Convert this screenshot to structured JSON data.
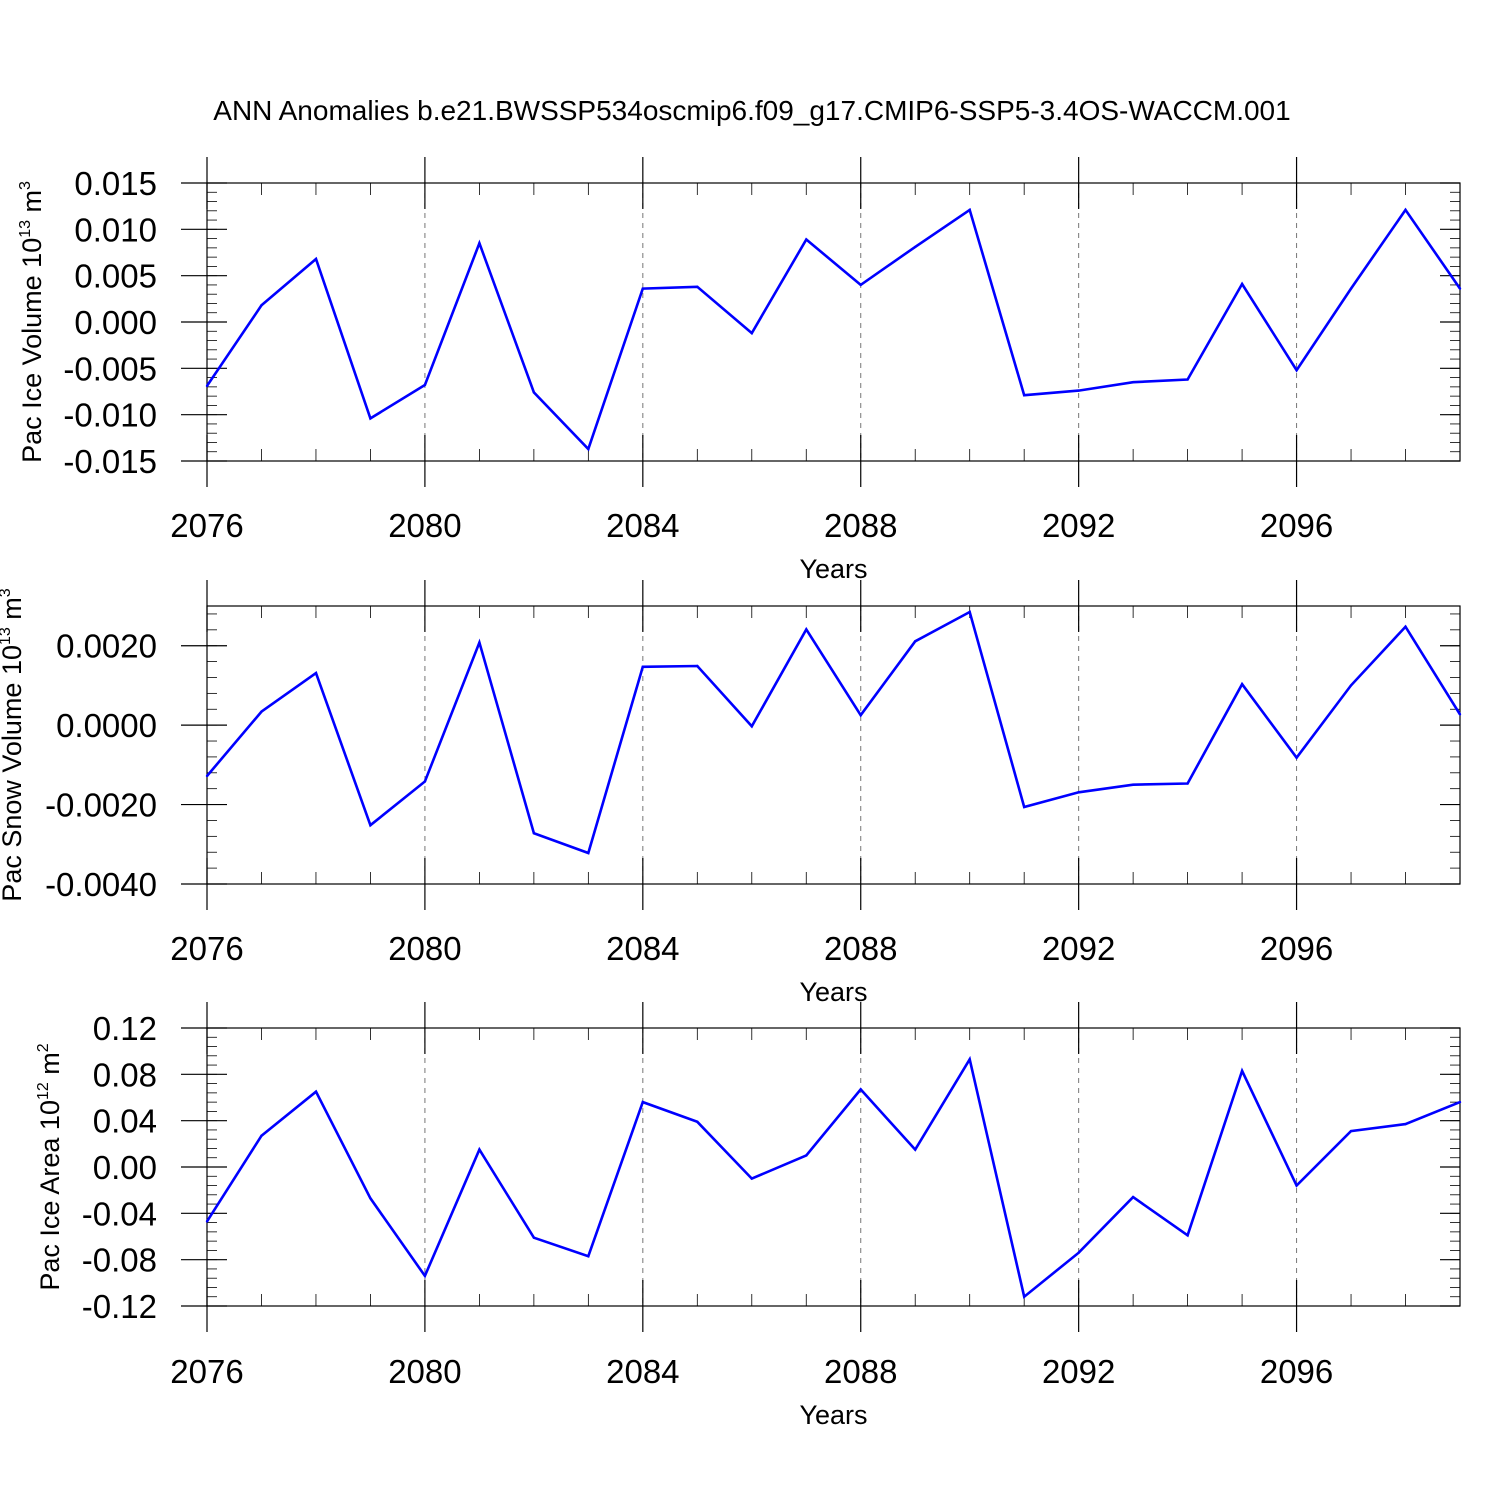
{
  "title": "ANN Anomalies b.e21.BWSSP534oscmip6.f09_g17.CMIP6-SSP5-3.4OS-WACCM.001",
  "line_color": "#0000ff",
  "chart_data": [
    {
      "type": "line",
      "ylabel": "Pac Ice Volume 10",
      "ylabel_exp": "13",
      "ylabel_unit": " m",
      "ylabel_unit_exp": "3",
      "xlabel": "Years",
      "xlim": [
        2076,
        2099
      ],
      "ylim": [
        -0.015,
        0.015
      ],
      "yticks": [
        -0.015,
        -0.01,
        -0.005,
        0.0,
        0.005,
        0.01,
        0.015
      ],
      "ytick_labels": [
        "-0.015",
        "-0.010",
        "-0.005",
        "0.000",
        "0.005",
        "0.010",
        "0.015"
      ],
      "xticks": [
        2076,
        2080,
        2084,
        2088,
        2092,
        2096
      ],
      "xtick_labels": [
        "2076",
        "2080",
        "2084",
        "2088",
        "2092",
        "2096"
      ],
      "x": [
        2076,
        2077,
        2078,
        2079,
        2080,
        2081,
        2082,
        2083,
        2084,
        2085,
        2086,
        2087,
        2088,
        2089,
        2090,
        2091,
        2092,
        2093,
        2094,
        2095,
        2096,
        2097,
        2098,
        2099
      ],
      "values": [
        -0.0069,
        0.0018,
        0.0068,
        -0.0104,
        -0.0068,
        0.0085,
        -0.0076,
        -0.0137,
        0.0036,
        0.0038,
        -0.0012,
        0.0089,
        0.004,
        0.0081,
        0.0121,
        -0.0079,
        -0.0074,
        -0.0065,
        -0.0062,
        0.0041,
        -0.0052,
        0.0036,
        0.0121,
        0.0036
      ]
    },
    {
      "type": "line",
      "ylabel": "Pac Snow Volume 10",
      "ylabel_exp": "13",
      "ylabel_unit": " m",
      "ylabel_unit_exp": "3",
      "xlabel": "Years",
      "xlim": [
        2076,
        2099
      ],
      "ylim": [
        -0.004,
        0.003
      ],
      "yticks": [
        -0.004,
        -0.002,
        0.0,
        0.002
      ],
      "ytick_labels": [
        "-0.0040",
        "-0.0020",
        "0.0000",
        "0.0020"
      ],
      "xticks": [
        2076,
        2080,
        2084,
        2088,
        2092,
        2096
      ],
      "xtick_labels": [
        "2076",
        "2080",
        "2084",
        "2088",
        "2092",
        "2096"
      ],
      "x": [
        2076,
        2077,
        2078,
        2079,
        2080,
        2081,
        2082,
        2083,
        2084,
        2085,
        2086,
        2087,
        2088,
        2089,
        2090,
        2091,
        2092,
        2093,
        2094,
        2095,
        2096,
        2097,
        2098,
        2099
      ],
      "values": [
        -0.00128,
        0.00034,
        0.00131,
        -0.00252,
        -0.00142,
        0.00208,
        -0.00272,
        -0.00322,
        0.00147,
        0.00149,
        -3e-05,
        0.00241,
        0.00025,
        0.00211,
        0.00285,
        -0.00206,
        -0.00169,
        -0.0015,
        -0.00147,
        0.00103,
        -0.00082,
        0.001,
        0.00248,
        0.00027
      ]
    },
    {
      "type": "line",
      "ylabel": "Pac Ice Area 10",
      "ylabel_exp": "12",
      "ylabel_unit": " m",
      "ylabel_unit_exp": "2",
      "xlabel": "Years",
      "xlim": [
        2076,
        2099
      ],
      "ylim": [
        -0.12,
        0.12
      ],
      "yticks": [
        -0.12,
        -0.08,
        -0.04,
        0.0,
        0.04,
        0.08,
        0.12
      ],
      "ytick_labels": [
        "-0.12",
        "-0.08",
        "-0.04",
        "0.00",
        "0.04",
        "0.08",
        "0.12"
      ],
      "xticks": [
        2076,
        2080,
        2084,
        2088,
        2092,
        2096
      ],
      "xtick_labels": [
        "2076",
        "2080",
        "2084",
        "2088",
        "2092",
        "2096"
      ],
      "x": [
        2076,
        2077,
        2078,
        2079,
        2080,
        2081,
        2082,
        2083,
        2084,
        2085,
        2086,
        2087,
        2088,
        2089,
        2090,
        2091,
        2092,
        2093,
        2094,
        2095,
        2096,
        2097,
        2098,
        2099
      ],
      "values": [
        -0.047,
        0.027,
        0.065,
        -0.027,
        -0.094,
        0.015,
        -0.061,
        -0.077,
        0.056,
        0.039,
        -0.01,
        0.01,
        0.067,
        0.015,
        0.093,
        -0.112,
        -0.074,
        -0.026,
        -0.059,
        0.083,
        -0.016,
        0.031,
        0.037,
        0.056
      ]
    }
  ]
}
